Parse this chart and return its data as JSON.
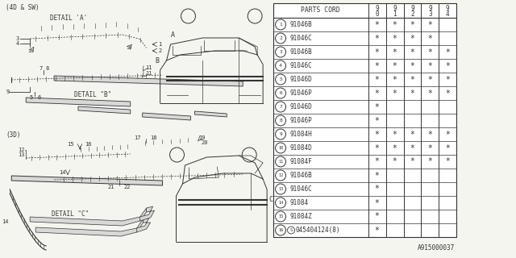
{
  "bg_color": "#f5f5f0",
  "line_color": "#333333",
  "rows": [
    {
      "num": "1",
      "part": "91046B",
      "marks": [
        1,
        1,
        1,
        1,
        0
      ]
    },
    {
      "num": "2",
      "part": "91046C",
      "marks": [
        1,
        1,
        1,
        1,
        0
      ]
    },
    {
      "num": "3",
      "part": "91046B",
      "marks": [
        1,
        1,
        1,
        1,
        1
      ]
    },
    {
      "num": "4",
      "part": "91046C",
      "marks": [
        1,
        1,
        1,
        1,
        1
      ]
    },
    {
      "num": "5",
      "part": "91046D",
      "marks": [
        1,
        1,
        1,
        1,
        1
      ]
    },
    {
      "num": "6",
      "part": "91046P",
      "marks": [
        1,
        1,
        1,
        1,
        1
      ]
    },
    {
      "num": "7",
      "part": "91046D",
      "marks": [
        1,
        0,
        0,
        0,
        0
      ]
    },
    {
      "num": "8",
      "part": "91046P",
      "marks": [
        1,
        0,
        0,
        0,
        0
      ]
    },
    {
      "num": "9",
      "part": "91084H",
      "marks": [
        1,
        1,
        1,
        1,
        1
      ]
    },
    {
      "num": "10",
      "part": "91084D",
      "marks": [
        1,
        1,
        1,
        1,
        1
      ]
    },
    {
      "num": "11",
      "part": "91084F",
      "marks": [
        1,
        1,
        1,
        1,
        1
      ]
    },
    {
      "num": "12",
      "part": "91046B",
      "marks": [
        1,
        0,
        0,
        0,
        0
      ]
    },
    {
      "num": "13",
      "part": "91046C",
      "marks": [
        1,
        0,
        0,
        0,
        0
      ]
    },
    {
      "num": "14",
      "part": "91084",
      "marks": [
        1,
        0,
        0,
        0,
        0
      ]
    },
    {
      "num": "15",
      "part": "91084Z",
      "marks": [
        1,
        0,
        0,
        0,
        0
      ]
    },
    {
      "num": "16",
      "part": "S045404124(8)",
      "marks": [
        1,
        0,
        0,
        0,
        0
      ]
    }
  ],
  "footer_text": "A915000037"
}
